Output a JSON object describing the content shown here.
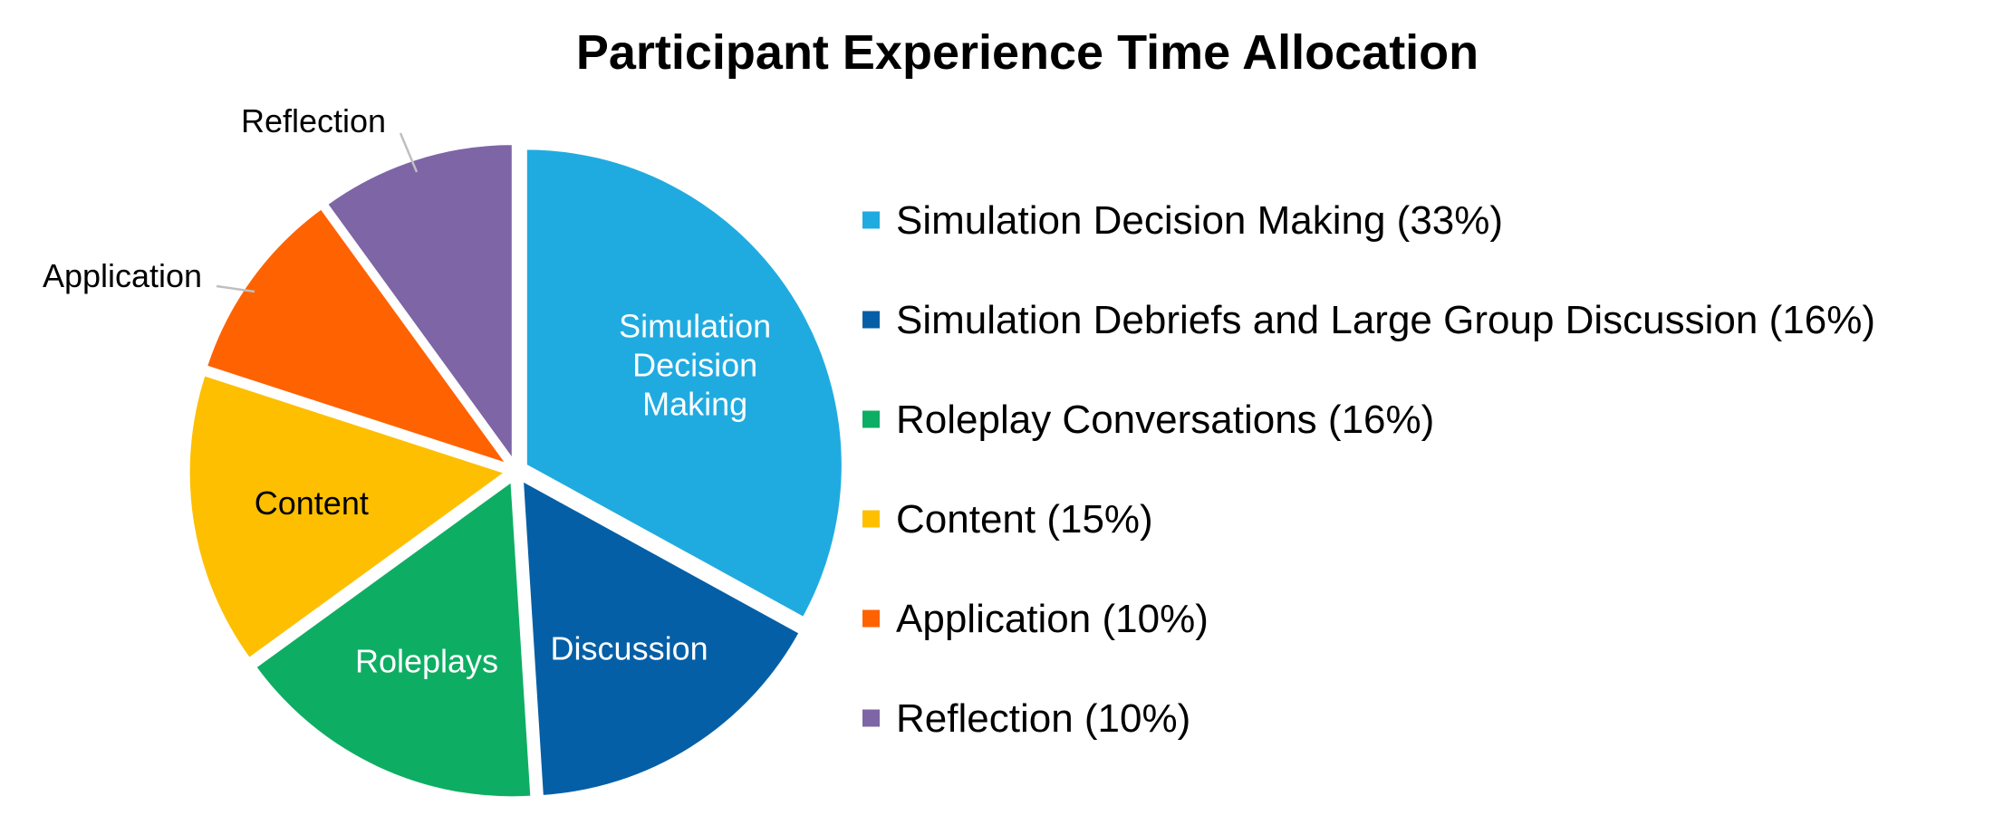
{
  "chart_data": {
    "type": "pie",
    "title": "Participant Experience Time Allocation",
    "slices": [
      {
        "name": "Simulation Decision Making",
        "value": 33,
        "color": "#20ABE0",
        "slice_label": [
          "Simulation",
          "Decision",
          "Making"
        ],
        "slice_label_color": "#ffffff",
        "legend_label": "Simulation Decision Making (33%)"
      },
      {
        "name": "Simulation Debriefs and Large Group Discussion",
        "value": 16,
        "color": "#055FA6",
        "slice_label": [
          "Discussion"
        ],
        "slice_label_color": "#ffffff",
        "legend_label": "Simulation Debriefs and Large Group Discussion (16%)"
      },
      {
        "name": "Roleplay Conversations",
        "value": 16,
        "color": "#0DAE63",
        "slice_label": [
          "Roleplays"
        ],
        "slice_label_color": "#ffffff",
        "legend_label": "Roleplay Conversations (16%)"
      },
      {
        "name": "Content",
        "value": 15,
        "color": "#FEBF00",
        "slice_label": [
          "Content"
        ],
        "slice_label_color": "#000000",
        "legend_label": "Content (15%)"
      },
      {
        "name": "Application",
        "value": 10,
        "color": "#FF6200",
        "slice_label": [
          "Application"
        ],
        "slice_label_color": "#000000",
        "slice_label_outside": true,
        "legend_label": "Application (10%)"
      },
      {
        "name": "Reflection",
        "value": 10,
        "color": "#7E65A6",
        "slice_label": [
          "Reflection"
        ],
        "slice_label_color": "#000000",
        "slice_label_outside": true,
        "legend_label": "Reflection (10%)"
      }
    ],
    "legend_position": "right",
    "start_angle": "12 o'clock",
    "direction": "clockwise"
  }
}
